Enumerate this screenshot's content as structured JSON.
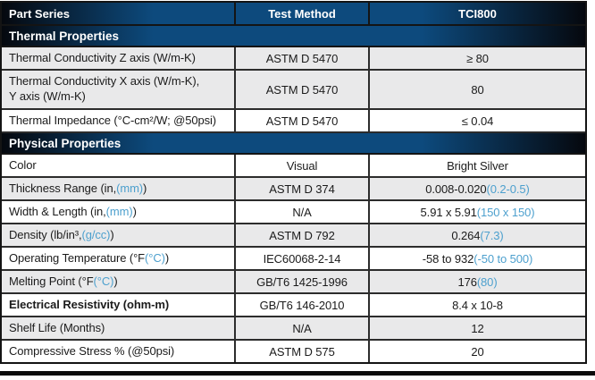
{
  "colors": {
    "header_blue": "#0d4a7d",
    "header_edge_dark": "#05080e",
    "accent_blue": "#4da0ce",
    "row_gray": "#e9e9ea",
    "border_dark": "#2c2c2c"
  },
  "table": {
    "columns": [
      "Part Series",
      "Test Method",
      "TCI800"
    ],
    "sections": [
      {
        "title": "Thermal Properties",
        "rows": [
          {
            "shade": "gray",
            "label": [
              {
                "text": "Thermal Conductivity Z axis (W/m-K)"
              }
            ],
            "method": "ASTM D 5470",
            "value": [
              {
                "text": "≥ 80"
              }
            ]
          },
          {
            "shade": "gray",
            "tall": true,
            "label": [
              {
                "text": "Thermal Conductivity X axis (W/m-K),\nY axis (W/m-K)"
              }
            ],
            "method": "ASTM D 5470",
            "value": [
              {
                "text": "80"
              }
            ]
          },
          {
            "shade": "white",
            "label": [
              {
                "text": "Thermal Impedance (°C-cm²/W; @50psi)"
              }
            ],
            "method": "ASTM D 5470",
            "value": [
              {
                "text": "≤ 0.04"
              }
            ]
          }
        ]
      },
      {
        "title": "Physical Properties",
        "rows": [
          {
            "shade": "white",
            "label": [
              {
                "text": "Color"
              }
            ],
            "method": "Visual",
            "value": [
              {
                "text": "Bright Silver"
              }
            ]
          },
          {
            "shade": "gray",
            "label": [
              {
                "text": "Thickness Range (in, "
              },
              {
                "text": "(mm)",
                "blue": true
              },
              {
                "text": ")"
              }
            ],
            "method": "ASTM D 374",
            "value": [
              {
                "text": "0.008-0.020 "
              },
              {
                "text": "(0.2-0.5)",
                "blue": true
              }
            ]
          },
          {
            "shade": "white",
            "label": [
              {
                "text": "Width & Length (in, "
              },
              {
                "text": "(mm)",
                "blue": true
              },
              {
                "text": ")"
              }
            ],
            "method": "N/A",
            "value": [
              {
                "text": "5.91 x 5.91 "
              },
              {
                "text": "(150 x 150)",
                "blue": true
              }
            ]
          },
          {
            "shade": "gray",
            "label": [
              {
                "text": "Density (lb/in³, "
              },
              {
                "text": "(g/cc)",
                "blue": true
              },
              {
                "text": ")"
              }
            ],
            "method": "ASTM D 792",
            "value": [
              {
                "text": "0.264 "
              },
              {
                "text": "(7.3)",
                "blue": true
              }
            ]
          },
          {
            "shade": "white",
            "label": [
              {
                "text": "Operating Temperature (°F "
              },
              {
                "text": "(°C)",
                "blue": true
              },
              {
                "text": ")"
              }
            ],
            "method": "IEC60068-2-14",
            "value": [
              {
                "text": "-58 to 932 "
              },
              {
                "text": "(-50 to 500)",
                "blue": true
              }
            ]
          },
          {
            "shade": "gray",
            "label": [
              {
                "text": "Melting Point (°F "
              },
              {
                "text": "(°C)",
                "blue": true
              },
              {
                "text": ")"
              }
            ],
            "method": "GB/T6 1425-1996",
            "value": [
              {
                "text": "176 "
              },
              {
                "text": "(80)",
                "blue": true
              }
            ]
          },
          {
            "shade": "white",
            "bold": true,
            "label": [
              {
                "text": "Electrical Resistivity (ohm-m)"
              }
            ],
            "method": "GB/T6 146-2010",
            "value": [
              {
                "text": "8.4 x 10-8"
              }
            ]
          },
          {
            "shade": "gray",
            "label": [
              {
                "text": "Shelf Life (Months)"
              }
            ],
            "method": "N/A",
            "value": [
              {
                "text": "12"
              }
            ]
          },
          {
            "shade": "white",
            "label": [
              {
                "text": "Compressive Stress % (@50psi)"
              }
            ],
            "method": "ASTM D 575",
            "value": [
              {
                "text": "20"
              }
            ]
          }
        ]
      }
    ]
  }
}
